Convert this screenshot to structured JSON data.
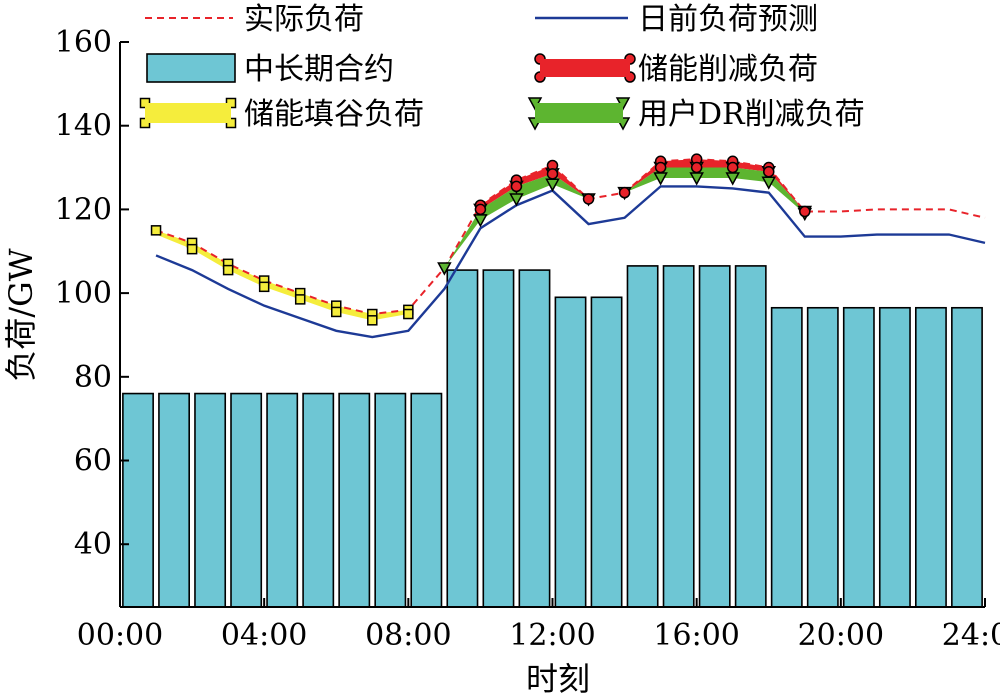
{
  "chart_data": {
    "type": "bar",
    "xlabel": "时刻",
    "ylabel": "负荷/GW",
    "xlim": [
      0,
      24
    ],
    "ylim": [
      25,
      160
    ],
    "x_ticks": [
      0,
      4,
      8,
      12,
      16,
      20,
      24
    ],
    "x_tick_labels": [
      "00:00",
      "04:00",
      "08:00",
      "12:00",
      "16:00",
      "20:00",
      "24:00"
    ],
    "y_ticks": [
      40,
      60,
      80,
      100,
      120,
      140,
      160
    ],
    "y_tick_labels": [
      "40",
      "60",
      "80",
      "100",
      "120",
      "140",
      "160"
    ],
    "grid": false,
    "legend": {
      "placement": "top",
      "entries": [
        {
          "label": "实际负荷",
          "key": "actual"
        },
        {
          "label": "日前负荷预测",
          "key": "forecast"
        },
        {
          "label": "中长期合约",
          "key": "contract"
        },
        {
          "label": "储能削减负荷",
          "key": "storage_cut"
        },
        {
          "label": "储能填谷负荷",
          "key": "storage_fill"
        },
        {
          "label": "用户DR削减负荷",
          "key": "dr_cut"
        }
      ]
    },
    "colors": {
      "actual": "#e8232a",
      "forecast": "#1d3a96",
      "contract_fill": "#6ec6d4",
      "storage_cut": "#e8232a",
      "storage_fill": "#f5ed3c",
      "dr_cut": "#5db530"
    },
    "series": [
      {
        "name": "中长期合约",
        "key": "contract",
        "type": "bar",
        "x": [
          1,
          2,
          3,
          4,
          5,
          6,
          7,
          8,
          9,
          10,
          11,
          12,
          13,
          14,
          15,
          16,
          17,
          18,
          19,
          20,
          21,
          22,
          23,
          24
        ],
        "values": [
          76,
          76,
          76,
          76,
          76,
          76,
          76,
          76,
          76,
          105.5,
          105.5,
          105.5,
          99,
          99,
          106.5,
          106.5,
          106.5,
          106.5,
          96.5,
          96.5,
          96.5,
          96.5,
          96.5,
          96.5
        ]
      },
      {
        "name": "实际负荷",
        "key": "actual",
        "type": "line",
        "x": [
          1,
          2,
          3,
          4,
          5,
          6,
          7,
          8,
          9,
          10,
          11,
          12,
          13,
          14,
          15,
          16,
          17,
          18,
          19,
          20,
          21,
          22,
          23,
          24
        ],
        "values": [
          115,
          112,
          107,
          103,
          100,
          97,
          95,
          96,
          106,
          121,
          127,
          130.5,
          122.5,
          124,
          131.5,
          132,
          131.5,
          130,
          119.5,
          119.5,
          120,
          120,
          120,
          118
        ]
      },
      {
        "name": "日前负荷预测",
        "key": "forecast",
        "type": "line",
        "x": [
          1,
          2,
          3,
          4,
          5,
          6,
          7,
          8,
          9,
          10,
          11,
          12,
          13,
          14,
          15,
          16,
          17,
          18,
          19,
          20,
          21,
          22,
          23,
          24
        ],
        "values": [
          109,
          105.5,
          101,
          97,
          94,
          91,
          89.5,
          91,
          101,
          115.5,
          121,
          124.5,
          116.5,
          118,
          125.5,
          125.5,
          125,
          124,
          113.5,
          113.5,
          114,
          114,
          114,
          112
        ]
      },
      {
        "name": "储能削减负荷",
        "key": "storage_cut",
        "type": "band",
        "x": [
          10,
          11,
          12,
          13,
          14,
          15,
          16,
          17,
          18,
          19
        ],
        "upper": [
          121,
          127,
          130.5,
          122.5,
          124,
          131.5,
          132,
          131.5,
          130,
          119.5
        ],
        "lower": [
          120,
          125.5,
          128.5,
          122.5,
          124,
          130,
          130,
          130,
          129,
          119.5
        ]
      },
      {
        "name": "用户DR削减负荷",
        "key": "dr_cut",
        "type": "band",
        "x": [
          9,
          10,
          11,
          12,
          13,
          14,
          15,
          16,
          17,
          18,
          19
        ],
        "upper": [
          106,
          120,
          125.5,
          128.5,
          122.5,
          124,
          130,
          130,
          130,
          129,
          119.5
        ],
        "lower": [
          106,
          117.5,
          122.5,
          126,
          122.5,
          124,
          127.5,
          127.5,
          127.5,
          126.5,
          119
        ]
      },
      {
        "name": "储能填谷负荷",
        "key": "storage_fill",
        "type": "band",
        "x": [
          1,
          2,
          3,
          4,
          5,
          6,
          7,
          8
        ],
        "upper": [
          115,
          112,
          107,
          103,
          100,
          97,
          95,
          96
        ],
        "lower": [
          114,
          110.5,
          105.5,
          101.5,
          98.5,
          95.5,
          93.5,
          95
        ]
      }
    ]
  }
}
